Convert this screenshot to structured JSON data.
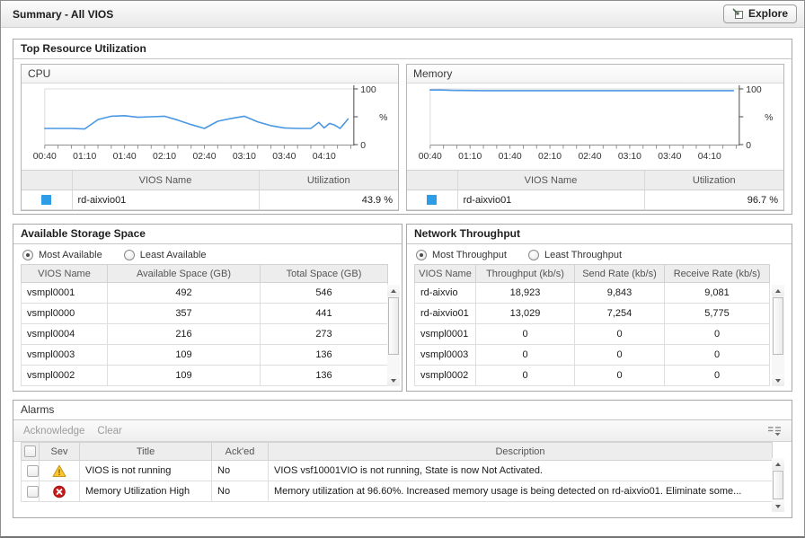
{
  "header": {
    "title": "Summary - All VIOS",
    "explore_label": "Explore"
  },
  "top_resource": {
    "title": "Top Resource Utilization"
  },
  "storage": {
    "title": "Available Storage Space",
    "radios": [
      {
        "label": "Most Available",
        "selected": true
      },
      {
        "label": "Least Available",
        "selected": false
      }
    ],
    "columns": [
      "VIOS Name",
      "Available Space (GB)",
      "Total Space (GB)"
    ],
    "rows": [
      [
        "vsmpl0001",
        "492",
        "546"
      ],
      [
        "vsmpl0000",
        "357",
        "441"
      ],
      [
        "vsmpl0004",
        "216",
        "273"
      ],
      [
        "vsmpl0003",
        "109",
        "136"
      ],
      [
        "vsmpl0002",
        "109",
        "136"
      ]
    ]
  },
  "network": {
    "title": "Network Throughput",
    "radios": [
      {
        "label": "Most Throughput",
        "selected": true
      },
      {
        "label": "Least Throughput",
        "selected": false
      }
    ],
    "columns": [
      "VIOS Name",
      "Throughput (kb/s)",
      "Send Rate (kb/s)",
      "Receive Rate (kb/s)"
    ],
    "rows": [
      [
        "rd-aixvio",
        "18,923",
        "9,843",
        "9,081"
      ],
      [
        "rd-aixvio01",
        "13,029",
        "7,254",
        "5,775"
      ],
      [
        "vsmpl0001",
        "0",
        "0",
        "0"
      ],
      [
        "vsmpl0003",
        "0",
        "0",
        "0"
      ],
      [
        "vsmpl0002",
        "0",
        "0",
        "0"
      ]
    ]
  },
  "alarms": {
    "title": "Alarms",
    "toolbar": [
      "Acknowledge",
      "Clear"
    ],
    "columns": [
      "Sev",
      "Title",
      "Ack'ed",
      "Description"
    ],
    "rows": [
      {
        "severity": "warning",
        "title": "VIOS is not running",
        "acked": "No",
        "description": "VIOS vsf10001VIO is not running, State is now Not Activated."
      },
      {
        "severity": "fatal",
        "title": "Memory Utilization High",
        "acked": "No",
        "description": "Memory utilization at 96.60%. Increased memory usage is being detected on rd-aixvio01. Eliminate some..."
      }
    ]
  },
  "chart_data": [
    {
      "type": "line",
      "title": "CPU",
      "ylabel": "%",
      "ylim": [
        0,
        100
      ],
      "y_ticks": [
        0,
        50,
        100
      ],
      "y_tick_labels": [
        [
          100,
          "100"
        ],
        [
          0,
          "0"
        ]
      ],
      "x_domain_minutes": [
        40,
        272
      ],
      "x_minor_tick_step": 10,
      "x_tick_labels": [
        [
          "00:40",
          40
        ],
        [
          "01:10",
          70
        ],
        [
          "01:40",
          100
        ],
        [
          "02:10",
          130
        ],
        [
          "02:40",
          160
        ],
        [
          "03:10",
          190
        ],
        [
          "03:40",
          220
        ],
        [
          "04:10",
          250
        ]
      ],
      "grid": false,
      "legend_position": "bottom-table",
      "series": [
        {
          "name": "rd-aixvio01",
          "color": "#4a97e2",
          "legend_color": "#2f9ce8",
          "x": [
            40,
            50,
            60,
            70,
            80,
            90,
            100,
            110,
            120,
            130,
            140,
            150,
            160,
            170,
            180,
            190,
            200,
            210,
            220,
            230,
            240,
            246,
            250,
            254,
            258,
            262,
            268
          ],
          "y": [
            29,
            29,
            29,
            28,
            45,
            51,
            52,
            49,
            50,
            51,
            44,
            36,
            29,
            42,
            47,
            51,
            41,
            34,
            30,
            29,
            29,
            40,
            30,
            38,
            35,
            29,
            46
          ]
        }
      ],
      "legend_table": {
        "columns": [
          "VIOS Name",
          "Utilization"
        ],
        "rows": [
          [
            "rd-aixvio01",
            "43.9 %"
          ]
        ]
      }
    },
    {
      "type": "line",
      "title": "Memory",
      "ylabel": "%",
      "ylim": [
        0,
        100
      ],
      "y_ticks": [
        0,
        50,
        100
      ],
      "y_tick_labels": [
        [
          100,
          "100"
        ],
        [
          0,
          "0"
        ]
      ],
      "x_domain_minutes": [
        40,
        272
      ],
      "x_minor_tick_step": 10,
      "x_tick_labels": [
        [
          "00:40",
          40
        ],
        [
          "01:10",
          70
        ],
        [
          "01:40",
          100
        ],
        [
          "02:10",
          130
        ],
        [
          "02:40",
          160
        ],
        [
          "03:10",
          190
        ],
        [
          "03:40",
          220
        ],
        [
          "04:10",
          250
        ]
      ],
      "grid": false,
      "legend_position": "bottom-table",
      "series": [
        {
          "name": "rd-aixvio01",
          "color": "#4a97e2",
          "legend_color": "#2f9ce8",
          "x": [
            40,
            48,
            56,
            64,
            80,
            100,
            120,
            140,
            160,
            180,
            200,
            220,
            240,
            268
          ],
          "y": [
            98,
            98,
            97.5,
            97.2,
            97,
            97,
            97,
            97,
            97,
            97,
            97,
            97,
            97,
            97
          ]
        }
      ],
      "legend_table": {
        "columns": [
          "VIOS Name",
          "Utilization"
        ],
        "rows": [
          [
            "rd-aixvio01",
            "96.7 %"
          ]
        ]
      }
    }
  ]
}
